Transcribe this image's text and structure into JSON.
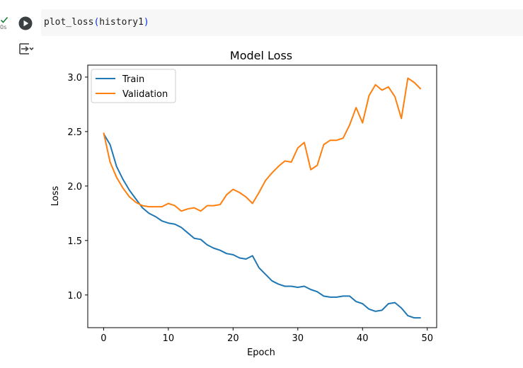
{
  "cell": {
    "status_icon": "check-icon",
    "exec_time": "0s",
    "run_icon": "play-icon",
    "code": {
      "func": "plot_loss",
      "open": "(",
      "arg": "history1",
      "close": ")"
    },
    "output_toggle_icon": "output-toggle-icon"
  },
  "colors": {
    "train": "#1f77b4",
    "validation": "#ff7f0e"
  },
  "chart_data": {
    "type": "line",
    "title": "Model Loss",
    "xlabel": "Epoch",
    "ylabel": "Loss",
    "xlim": [
      -2.45,
      51.45
    ],
    "ylim": [
      0.7,
      3.11
    ],
    "xticks": [
      0,
      10,
      20,
      30,
      40,
      50
    ],
    "xtick_labels": [
      "0",
      "10",
      "20",
      "30",
      "40",
      "50"
    ],
    "yticks": [
      1.0,
      1.5,
      2.0,
      2.5,
      3.0
    ],
    "ytick_labels": [
      "1.0",
      "1.5",
      "2.0",
      "2.5",
      "3.0"
    ],
    "grid": false,
    "legend_position": "upper-left",
    "x": [
      0,
      1,
      2,
      3,
      4,
      5,
      6,
      7,
      8,
      9,
      10,
      11,
      12,
      13,
      14,
      15,
      16,
      17,
      18,
      19,
      20,
      21,
      22,
      23,
      24,
      25,
      26,
      27,
      28,
      29,
      30,
      31,
      32,
      33,
      34,
      35,
      36,
      37,
      38,
      39,
      40,
      41,
      42,
      43,
      44,
      45,
      46,
      47,
      48,
      49
    ],
    "series": [
      {
        "name": "Train",
        "color": "#1f77b4",
        "values": [
          2.48,
          2.38,
          2.18,
          2.06,
          1.96,
          1.88,
          1.8,
          1.75,
          1.72,
          1.68,
          1.66,
          1.65,
          1.62,
          1.57,
          1.52,
          1.51,
          1.46,
          1.43,
          1.41,
          1.38,
          1.37,
          1.34,
          1.33,
          1.36,
          1.25,
          1.19,
          1.13,
          1.1,
          1.08,
          1.08,
          1.07,
          1.08,
          1.05,
          1.03,
          0.99,
          0.98,
          0.98,
          0.99,
          0.99,
          0.94,
          0.92,
          0.87,
          0.85,
          0.86,
          0.92,
          0.93,
          0.88,
          0.81,
          0.79,
          0.79
        ]
      },
      {
        "name": "Validation",
        "color": "#ff7f0e",
        "values": [
          2.49,
          2.22,
          2.08,
          1.98,
          1.9,
          1.85,
          1.82,
          1.81,
          1.81,
          1.81,
          1.84,
          1.82,
          1.77,
          1.79,
          1.8,
          1.77,
          1.82,
          1.82,
          1.83,
          1.92,
          1.97,
          1.94,
          1.9,
          1.84,
          1.94,
          2.05,
          2.12,
          2.18,
          2.23,
          2.22,
          2.35,
          2.4,
          2.15,
          2.19,
          2.38,
          2.42,
          2.42,
          2.44,
          2.56,
          2.72,
          2.58,
          2.83,
          2.93,
          2.88,
          2.91,
          2.82,
          2.62,
          2.99,
          2.95,
          2.89
        ]
      }
    ]
  }
}
